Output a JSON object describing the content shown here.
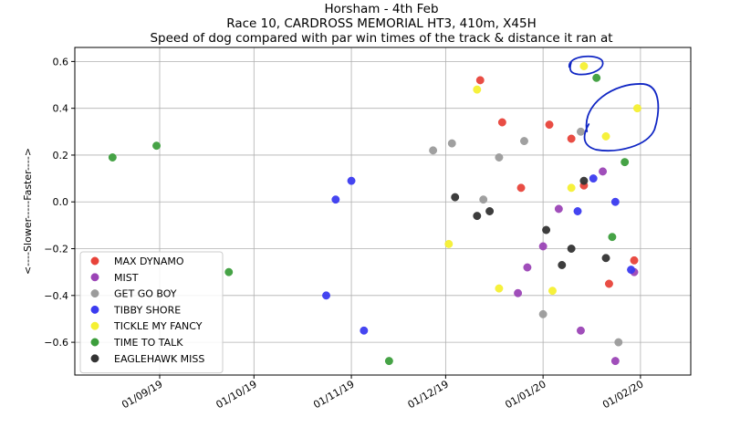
{
  "chart_data": {
    "type": "scatter",
    "title_lines": [
      "Horsham  - 4th Feb",
      "Race 10, CARDROSS MEMORIAL HT3, 410m, X45H",
      "Speed of dog compared with par win times of the track & distance it ran at"
    ],
    "ylabel": "<----Slower-----Faster---->",
    "xlabel": "",
    "xlim": [
      "2019-08-05",
      "2020-02-17"
    ],
    "ylim": [
      -0.74,
      0.66
    ],
    "x_ticks": [
      "2019-09-01",
      "2019-10-01",
      "2019-11-01",
      "2019-12-01",
      "2020-01-01",
      "2020-02-01"
    ],
    "x_tick_labels": [
      "01/09/19",
      "01/10/19",
      "01/11/19",
      "01/12/19",
      "01/01/20",
      "01/02/20"
    ],
    "y_ticks": [
      0.6,
      0.4,
      0.2,
      0.0,
      -0.2,
      -0.4,
      -0.6
    ],
    "y_tick_labels": [
      "0.6",
      "0.4",
      "0.2",
      "0.0",
      "−0.2",
      "−0.4",
      "−0.6"
    ],
    "grid": true,
    "legend_position": "lower-left",
    "series": [
      {
        "name": "MAX DYNAMO",
        "color": "#e8433a",
        "points": [
          {
            "x": "2019-12-12",
            "y": 0.52
          },
          {
            "x": "2019-12-19",
            "y": 0.34
          },
          {
            "x": "2019-12-25",
            "y": 0.06
          },
          {
            "x": "2020-01-03",
            "y": 0.33
          },
          {
            "x": "2020-01-10",
            "y": 0.27
          },
          {
            "x": "2020-01-14",
            "y": 0.07
          },
          {
            "x": "2020-01-22",
            "y": -0.35
          },
          {
            "x": "2020-01-30",
            "y": -0.25
          }
        ]
      },
      {
        "name": "MIST",
        "color": "#9b44b6",
        "points": [
          {
            "x": "2019-12-24",
            "y": -0.39
          },
          {
            "x": "2019-12-27",
            "y": -0.28
          },
          {
            "x": "2020-01-01",
            "y": -0.19
          },
          {
            "x": "2020-01-06",
            "y": -0.03
          },
          {
            "x": "2020-01-13",
            "y": -0.55
          },
          {
            "x": "2020-01-20",
            "y": 0.13
          },
          {
            "x": "2020-01-24",
            "y": -0.68
          },
          {
            "x": "2020-01-30",
            "y": -0.3
          }
        ]
      },
      {
        "name": "GET GO BOY",
        "color": "#9b9b9b",
        "points": [
          {
            "x": "2019-11-27",
            "y": 0.22
          },
          {
            "x": "2019-12-03",
            "y": 0.25
          },
          {
            "x": "2019-12-13",
            "y": 0.01
          },
          {
            "x": "2019-12-18",
            "y": 0.19
          },
          {
            "x": "2019-12-26",
            "y": 0.26
          },
          {
            "x": "2020-01-01",
            "y": -0.48
          },
          {
            "x": "2020-01-13",
            "y": 0.3
          },
          {
            "x": "2020-01-25",
            "y": -0.6
          }
        ]
      },
      {
        "name": "TIBBY SHORE",
        "color": "#3b3bf0",
        "points": [
          {
            "x": "2019-10-24",
            "y": -0.4
          },
          {
            "x": "2019-10-27",
            "y": 0.01
          },
          {
            "x": "2019-11-01",
            "y": 0.09
          },
          {
            "x": "2019-11-05",
            "y": -0.55
          },
          {
            "x": "2020-01-12",
            "y": -0.04
          },
          {
            "x": "2020-01-17",
            "y": 0.1
          },
          {
            "x": "2020-01-24",
            "y": 0.0
          },
          {
            "x": "2020-01-29",
            "y": -0.29
          }
        ]
      },
      {
        "name": "TICKLE MY FANCY",
        "color": "#f5f032",
        "points": [
          {
            "x": "2019-12-02",
            "y": -0.18
          },
          {
            "x": "2019-12-11",
            "y": 0.48
          },
          {
            "x": "2019-12-18",
            "y": -0.37
          },
          {
            "x": "2020-01-04",
            "y": -0.38
          },
          {
            "x": "2020-01-10",
            "y": 0.06
          },
          {
            "x": "2020-01-14",
            "y": 0.58
          },
          {
            "x": "2020-01-21",
            "y": 0.28
          },
          {
            "x": "2020-01-31",
            "y": 0.4
          }
        ]
      },
      {
        "name": "TIME TO TALK",
        "color": "#3c9e3c",
        "points": [
          {
            "x": "2019-08-17",
            "y": 0.19
          },
          {
            "x": "2019-08-31",
            "y": 0.24
          },
          {
            "x": "2019-09-23",
            "y": -0.3
          },
          {
            "x": "2019-11-13",
            "y": -0.68
          },
          {
            "x": "2020-01-18",
            "y": 0.53
          },
          {
            "x": "2020-01-23",
            "y": -0.15
          },
          {
            "x": "2020-01-27",
            "y": 0.17
          }
        ]
      },
      {
        "name": "EAGLEHAWK MISS",
        "color": "#333333",
        "points": [
          {
            "x": "2019-12-04",
            "y": 0.02
          },
          {
            "x": "2019-12-11",
            "y": -0.06
          },
          {
            "x": "2019-12-15",
            "y": -0.04
          },
          {
            "x": "2020-01-02",
            "y": -0.12
          },
          {
            "x": "2020-01-07",
            "y": -0.27
          },
          {
            "x": "2020-01-10",
            "y": -0.2
          },
          {
            "x": "2020-01-14",
            "y": 0.09
          },
          {
            "x": "2020-01-21",
            "y": -0.24
          }
        ]
      }
    ],
    "annotations": [
      {
        "type": "hand-drawn ellipse",
        "color": "#1026c4",
        "around": "TICKLE MY FANCY point near y 0.58"
      },
      {
        "type": "hand-drawn ellipse",
        "color": "#1026c4",
        "around": "TICKLE MY FANCY points near y 0.28 and 0.40"
      }
    ]
  }
}
